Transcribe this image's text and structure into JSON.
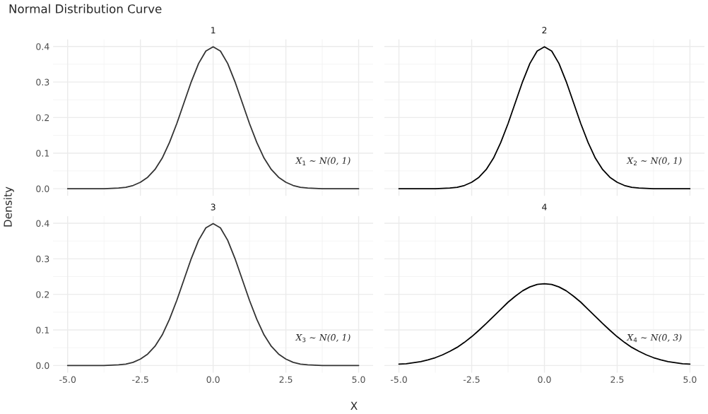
{
  "chart_data": [
    {
      "type": "line",
      "title": "Normal Distribution Curve",
      "subtitle": "1",
      "ylabel": "Density",
      "tick_labels": "y",
      "grid": true,
      "legend": false,
      "xlim": [
        -5.5,
        5.5
      ],
      "ylim": [
        -0.02,
        0.42
      ],
      "xticks": [
        {
          "value": -5,
          "label": null
        },
        {
          "value": -2.5,
          "label": null
        },
        {
          "value": 0,
          "label": null
        },
        {
          "value": 2.5,
          "label": null
        },
        {
          "value": 5,
          "label": null
        }
      ],
      "yticks": [
        {
          "value": 0,
          "label": "0.0"
        },
        0.1,
        0.2,
        0.3,
        0.4
      ],
      "x": [
        -5,
        -4.75,
        -4.5,
        -4.25,
        -4,
        -3.75,
        -3.5,
        -3.25,
        -3,
        -2.75,
        -2.5,
        -2.25,
        -2,
        -1.75,
        -1.5,
        -1.25,
        -1,
        -0.75,
        -0.5,
        -0.25,
        0,
        0.25,
        0.5,
        0.75,
        1,
        1.25,
        1.5,
        1.75,
        2,
        2.25,
        2.5,
        2.75,
        3,
        3.25,
        3.5,
        3.75,
        4,
        4.25,
        4.5,
        4.75,
        5
      ],
      "series": [
        {
          "color": "#333333",
          "values": [
            0,
            0,
            0,
            0,
            0,
            0,
            0.001,
            0.002,
            0.004,
            0.009,
            0.018,
            0.032,
            0.054,
            0.086,
            0.13,
            0.183,
            0.242,
            0.301,
            0.352,
            0.387,
            0.399,
            0.387,
            0.352,
            0.301,
            0.242,
            0.183,
            0.13,
            0.086,
            0.054,
            0.032,
            0.018,
            0.009,
            0.004,
            0.002,
            0.001,
            0,
            0,
            0,
            0,
            0,
            0
          ]
        }
      ],
      "annotations": [
        "X$_{1}$ ∼ N(0, 1)"
      ]
    },
    {
      "type": "line",
      "subtitle": "2",
      "tick_labels": false,
      "grid": true,
      "legend": false,
      "xlim": [
        -5.5,
        5.5
      ],
      "ylim": [
        -0.02,
        0.42
      ],
      "xticks": [
        {
          "value": -5,
          "label": null
        },
        {
          "value": -2.5,
          "label": null
        },
        {
          "value": 0,
          "label": null
        },
        {
          "value": 2.5,
          "label": null
        },
        {
          "value": 5,
          "label": null
        }
      ],
      "yticks": [
        {
          "value": 0,
          "label": null
        },
        {
          "value": 0.1,
          "label": null
        },
        {
          "value": 0.2,
          "label": null
        },
        {
          "value": 0.3,
          "label": null
        },
        {
          "value": 0.4,
          "label": null
        }
      ],
      "x": [
        -5,
        -4.75,
        -4.5,
        -4.25,
        -4,
        -3.75,
        -3.5,
        -3.25,
        -3,
        -2.75,
        -2.5,
        -2.25,
        -2,
        -1.75,
        -1.5,
        -1.25,
        -1,
        -0.75,
        -0.5,
        -0.25,
        0,
        0.25,
        0.5,
        0.75,
        1,
        1.25,
        1.5,
        1.75,
        2,
        2.25,
        2.5,
        2.75,
        3,
        3.25,
        3.5,
        3.75,
        4,
        4.25,
        4.5,
        4.75,
        5
      ],
      "series": [
        {
          "color": "#000000",
          "values": [
            0,
            0,
            0,
            0,
            0,
            0,
            0.001,
            0.002,
            0.004,
            0.009,
            0.018,
            0.032,
            0.054,
            0.086,
            0.13,
            0.183,
            0.242,
            0.301,
            0.352,
            0.387,
            0.399,
            0.387,
            0.352,
            0.301,
            0.242,
            0.183,
            0.13,
            0.086,
            0.054,
            0.032,
            0.018,
            0.009,
            0.004,
            0.002,
            0.001,
            0,
            0,
            0,
            0,
            0,
            0
          ]
        }
      ],
      "annotations": [
        "X$_{2}$ ∼ N(0, 1)"
      ]
    },
    {
      "type": "line",
      "subtitle": "3",
      "xlabel": "X",
      "grid": true,
      "legend": false,
      "xlim": [
        -5.5,
        5.5
      ],
      "ylim": [
        -0.02,
        0.42
      ],
      "xticks": [
        {
          "value": -5,
          "label": "-5.0"
        },
        {
          "value": -2.5,
          "label": "-2.5"
        },
        {
          "value": 0,
          "label": "0.0"
        },
        {
          "value": 2.5,
          "label": "2.5"
        },
        {
          "value": 5,
          "label": "5.0"
        }
      ],
      "yticks": [
        {
          "value": 0,
          "label": "0.0"
        },
        0.1,
        0.2,
        0.3,
        0.4
      ],
      "x": [
        -5,
        -4.75,
        -4.5,
        -4.25,
        -4,
        -3.75,
        -3.5,
        -3.25,
        -3,
        -2.75,
        -2.5,
        -2.25,
        -2,
        -1.75,
        -1.5,
        -1.25,
        -1,
        -0.75,
        -0.5,
        -0.25,
        0,
        0.25,
        0.5,
        0.75,
        1,
        1.25,
        1.5,
        1.75,
        2,
        2.25,
        2.5,
        2.75,
        3,
        3.25,
        3.5,
        3.75,
        4,
        4.25,
        4.5,
        4.75,
        5
      ],
      "series": [
        {
          "color": "#333333",
          "values": [
            0,
            0,
            0,
            0,
            0,
            0,
            0.001,
            0.002,
            0.004,
            0.009,
            0.018,
            0.032,
            0.054,
            0.086,
            0.13,
            0.183,
            0.242,
            0.301,
            0.352,
            0.387,
            0.399,
            0.387,
            0.352,
            0.301,
            0.242,
            0.183,
            0.13,
            0.086,
            0.054,
            0.032,
            0.018,
            0.009,
            0.004,
            0.002,
            0.001,
            0,
            0,
            0,
            0,
            0,
            0
          ]
        }
      ],
      "annotations": [
        "X$_{3}$ ∼ N(0, 1)"
      ]
    },
    {
      "type": "line",
      "subtitle": "4",
      "tick_labels": "x",
      "grid": true,
      "legend": false,
      "xlim": [
        -5.5,
        5.5
      ],
      "ylim": [
        -0.02,
        0.42
      ],
      "xticks": [
        {
          "value": -5,
          "label": "-5.0"
        },
        {
          "value": -2.5,
          "label": "-2.5"
        },
        {
          "value": 0,
          "label": "0.0"
        },
        {
          "value": 2.5,
          "label": "2.5"
        },
        {
          "value": 5,
          "label": "5.0"
        }
      ],
      "yticks": [
        {
          "value": 0,
          "label": null
        },
        {
          "value": 0.1,
          "label": null
        },
        {
          "value": 0.2,
          "label": null
        },
        {
          "value": 0.3,
          "label": null
        },
        {
          "value": 0.4,
          "label": null
        }
      ],
      "x": [
        -5,
        -4.75,
        -4.5,
        -4.25,
        -4,
        -3.75,
        -3.5,
        -3.25,
        -3,
        -2.75,
        -2.5,
        -2.25,
        -2,
        -1.75,
        -1.5,
        -1.25,
        -1,
        -0.75,
        -0.5,
        -0.25,
        0,
        0.25,
        0.5,
        0.75,
        1,
        1.25,
        1.5,
        1.75,
        2,
        2.25,
        2.5,
        2.75,
        3,
        3.25,
        3.5,
        3.75,
        4,
        4.25,
        4.5,
        4.75,
        5
      ],
      "series": [
        {
          "color": "#000000",
          "values": [
            0.004,
            0.005,
            0.008,
            0.011,
            0.016,
            0.022,
            0.03,
            0.04,
            0.051,
            0.065,
            0.081,
            0.099,
            0.118,
            0.138,
            0.158,
            0.178,
            0.195,
            0.21,
            0.221,
            0.228,
            0.23,
            0.228,
            0.221,
            0.21,
            0.195,
            0.178,
            0.158,
            0.138,
            0.118,
            0.099,
            0.081,
            0.065,
            0.051,
            0.04,
            0.03,
            0.022,
            0.016,
            0.011,
            0.008,
            0.005,
            0.004
          ]
        }
      ],
      "annotations": [
        "X$_{4}$ ∼ N(0, 3)"
      ]
    }
  ]
}
